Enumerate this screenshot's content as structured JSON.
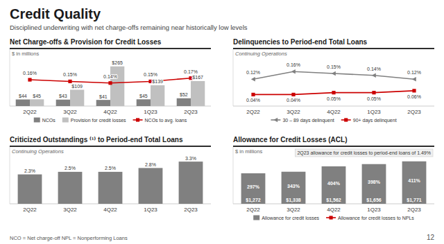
{
  "title": "Credit Quality",
  "subtitle": "Disciplined underwriting with net charge-offs remaining near historically low levels",
  "annotations": [
    "NCO = Net charge-off   NPL = Nonperforming Loans",
    "12"
  ],
  "chart_data": [
    {
      "type": "bar",
      "title": "Net Charge-offs & Provision for Credit Losses",
      "ylabel": "$ in millions",
      "categories": [
        "2Q22",
        "3Q22",
        "4Q22",
        "1Q23",
        "2Q23"
      ],
      "series": [
        {
          "name": "NCOs",
          "type": "bar",
          "color": "#808080",
          "values": [
            44,
            43,
            41,
            45,
            52
          ],
          "value_labels": [
            "$44",
            "$43",
            "$41",
            "$45",
            "$52"
          ]
        },
        {
          "name": "Provision for credit losses",
          "type": "bar",
          "color": "#c0c0c0",
          "values": [
            45,
            109,
            265,
            139,
            167
          ],
          "value_labels": [
            "$45",
            "$109",
            "$265",
            "$139",
            "$167"
          ]
        },
        {
          "name": "NCOs to avg. loans",
          "type": "line",
          "axis": "y2",
          "color": "#cc0000",
          "marker": "square",
          "values": [
            0.16,
            0.15,
            0.14,
            0.15,
            0.17
          ],
          "value_labels": [
            "0.16%",
            "0.15%",
            "0.14%",
            "0.15%",
            "0.17%"
          ]
        }
      ],
      "ylim": [
        0,
        384.25
      ],
      "yticks": [],
      "y2lim": [
        0,
        0.35
      ],
      "y2ticks": [],
      "tick_labels": "x",
      "data_labels": true,
      "legend": "bottom"
    },
    {
      "type": "line",
      "title": "Delinquencies to Period-end Total Loans",
      "annotations": [
        "Continuing Operations"
      ],
      "categories": [
        "2Q22",
        "3Q22",
        "4Q22",
        "1Q23",
        "2Q23"
      ],
      "series": [
        {
          "name": "30 – 89 days delinquent",
          "color": "#808080",
          "marker": "triangle-left",
          "values": [
            0.12,
            0.16,
            0.15,
            0.14,
            0.12
          ],
          "value_labels": [
            "0.12%",
            "0.16%",
            "0.15%",
            "0.14%",
            "0.12%"
          ]
        },
        {
          "name": "90+ days delinquent",
          "color": "#cc0000",
          "marker": "square",
          "values": [
            0.04,
            0.04,
            0.05,
            0.05,
            0.06
          ],
          "value_labels": [
            "0.04%",
            "0.04%",
            "0.05%",
            "0.05%",
            "0.06%"
          ]
        }
      ],
      "ylim": [
        -0.02,
        0.28
      ],
      "yticks": [],
      "tick_labels": "x",
      "data_labels": true,
      "legend": "bottom"
    },
    {
      "type": "bar",
      "title": "Criticized Outstandings ⁽¹⁾ to Period-end Total Loans",
      "annotations": [
        "Continuing Operations"
      ],
      "categories": [
        "2Q22",
        "3Q22",
        "4Q22",
        "1Q23",
        "2Q23"
      ],
      "values": [
        2.3,
        2.5,
        2.5,
        2.8,
        3.3
      ],
      "value_labels": [
        "2.3%",
        "2.5%",
        "2.5%",
        "2.8%",
        "3.3%"
      ],
      "color": "#808080",
      "ylim": [
        0,
        4.5
      ],
      "yticks": [],
      "tick_labels": "x",
      "data_labels": true
    },
    {
      "type": "bar",
      "title": "Allowance for Credit Losses (ACL)",
      "ylabel": "$ in millions",
      "annotations": [
        "2Q23 allowance for credit losses to period-end loans of 1.49%"
      ],
      "categories": [
        "2Q22",
        "3Q22",
        "4Q22",
        "1Q23",
        "2Q23"
      ],
      "series": [
        {
          "name": "Allowance for credit losses",
          "type": "bar",
          "color": "#808080",
          "values": [
            1272,
            1338,
            1562,
            1656,
            1771
          ],
          "value_labels": [
            "$1,272",
            "$1,338",
            "$1,562",
            "$1,656",
            "$1,771"
          ]
        },
        {
          "name": "Allowance for credit losses to NPLs",
          "type": "text",
          "color": "#cc0000",
          "marker": "square",
          "values": [
            297,
            343,
            404,
            398,
            411
          ],
          "value_labels": [
            "297%",
            "343%",
            "404%",
            "398%",
            "411%"
          ]
        }
      ],
      "ylim": [
        0,
        2400
      ],
      "yticks": [],
      "tick_labels": "x",
      "data_labels": true,
      "legend": "bottom"
    }
  ]
}
